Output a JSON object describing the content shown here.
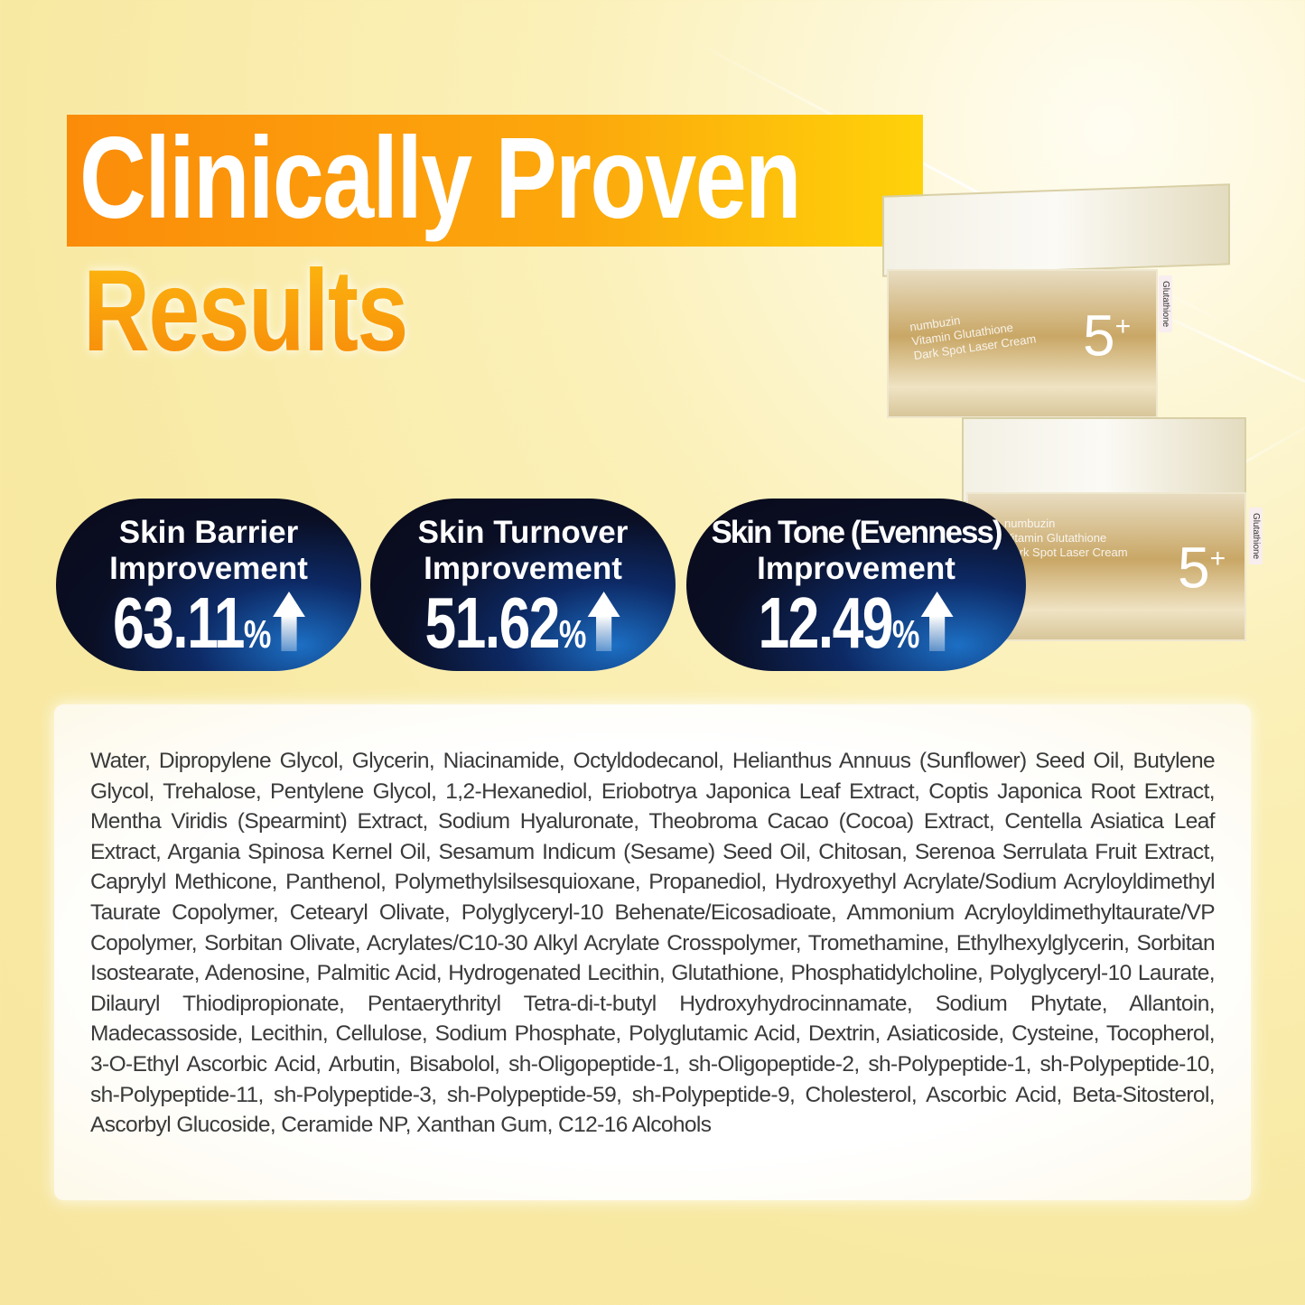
{
  "heading": {
    "line1": "Clinically Proven",
    "line2": "Results"
  },
  "badges": [
    {
      "label1": "Skin Barrier",
      "label2": "Improvement",
      "value": "63.11",
      "unit": "%",
      "icon": "arrow-up-icon"
    },
    {
      "label1": "Skin Turnover",
      "label2": "Improvement",
      "value": "51.62",
      "unit": "%",
      "icon": "arrow-up-icon"
    },
    {
      "label1": "Skin Tone (Evenness)",
      "label2": "Improvement",
      "value": "12.49",
      "unit": "%",
      "icon": "arrow-up-icon"
    }
  ],
  "product": {
    "brand": "numbuzin",
    "name1": "Vitamin Glutathione",
    "name2": "Dark Spot Laser Cream",
    "number": "5",
    "plus": "+",
    "tag": "Glutathione"
  },
  "ingredients": "Water, Dipropylene Glycol, Glycerin, Niacinamide, Octyldodecanol, Helianthus Annuus (Sunflower) Seed Oil, Butylene Glycol, Trehalose, Pentylene Glycol, 1,2-Hexanediol, Eriobotrya Japonica Leaf Extract, Coptis Japonica Root Extract, Mentha Viridis (Spearmint) Extract, Sodium Hyaluronate, Theobroma Cacao (Cocoa) Extract, Centella Asiatica Leaf Extract, Argania Spinosa Kernel Oil, Sesamum Indicum (Sesame) Seed Oil, Chitosan, Serenoa Serrulata Fruit Extract, Caprylyl Methicone, Panthenol, Polymethylsilsesquioxane, Propanediol, Hydroxyethyl Acrylate/Sodium Acryloyldimethyl Taurate Copolymer, Cetearyl Olivate, Polyglyceryl-10 Behenate/Eicosadioate, Ammonium Acryloyldimethyltaurate/VP Copolymer, Sorbitan Olivate, Acrylates/C10-30 Alkyl Acrylate Crosspolymer, Tromethamine, Ethylhexylglycerin, Sorbitan Isostearate, Adenosine, Palmitic Acid, Hydrogenated Lecithin, Glutathione, Phosphatidylcholine, Polyglyceryl-10 Laurate, Dilauryl Thiodipropionate, Pentaerythrityl Tetra-di-t-butyl Hydroxyhydrocinnamate, Sodium Phytate, Allantoin, Madecassoside, Lecithin, Cellulose, Sodium Phosphate, Polyglutamic Acid, Dextrin, Asiaticoside, Cysteine, Tocopherol, 3-O-Ethyl Ascorbic Acid, Arbutin, Bisabolol, sh-Oligopeptide-1, sh-Oligopeptide-2, sh-Polypeptide-1, sh-Polypeptide-10, sh-Polypeptide-11, sh-Polypeptide-3, sh-Polypeptide-59, sh-Polypeptide-9, Cholesterol, Ascorbic Acid, Beta-Sitosterol, Ascorbyl Glucoside, Ceramide NP, Xanthan Gum, C12-16 Alcohols",
  "colors": {
    "title_bar_start": "#fb8c0a",
    "title_bar_end": "#fed20a",
    "badge_dark": "#09091a",
    "badge_glow": "#1c6fc4"
  }
}
